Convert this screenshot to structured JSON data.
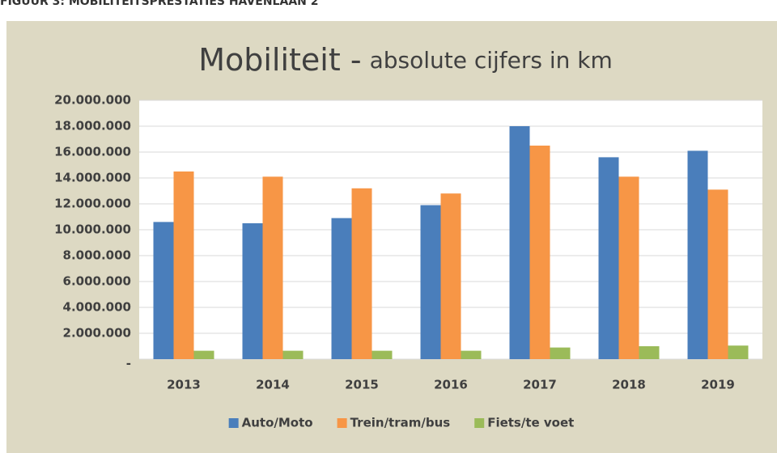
{
  "header": "FIGUUR 3: MOBILITEITSPRESTATIES HAVENLAAN 2",
  "chart_data": {
    "type": "bar",
    "title": "Mobiliteit -",
    "subtitle": "absolute cijfers in km",
    "categories": [
      "2013",
      "2014",
      "2015",
      "2016",
      "2017",
      "2018",
      "2019"
    ],
    "series": [
      {
        "name": "Auto/Moto",
        "color": "#4a7ebb",
        "values": [
          10600000,
          10500000,
          10900000,
          11900000,
          18000000,
          15600000,
          16100000
        ]
      },
      {
        "name": "Trein/tram/bus",
        "color": "#f79646",
        "values": [
          14500000,
          14100000,
          13200000,
          12800000,
          16500000,
          14100000,
          13100000
        ]
      },
      {
        "name": "Fiets/te voet",
        "color": "#9bbb59",
        "values": [
          650000,
          650000,
          650000,
          650000,
          900000,
          1000000,
          1050000
        ]
      }
    ],
    "ylim": [
      0,
      20000000
    ],
    "yticks": [
      {
        "value": 0,
        "label": "-"
      },
      {
        "value": 2000000,
        "label": "2.000.000"
      },
      {
        "value": 4000000,
        "label": "4.000.000"
      },
      {
        "value": 6000000,
        "label": "6.000.000"
      },
      {
        "value": 8000000,
        "label": "8.000.000"
      },
      {
        "value": 10000000,
        "label": "10.000.000"
      },
      {
        "value": 12000000,
        "label": "12.000.000"
      },
      {
        "value": 14000000,
        "label": "14.000.000"
      },
      {
        "value": 16000000,
        "label": "16.000.000"
      },
      {
        "value": 18000000,
        "label": "18.000.000"
      },
      {
        "value": 20000000,
        "label": "20.000.000"
      }
    ],
    "grid": true,
    "legend": "bottom"
  }
}
